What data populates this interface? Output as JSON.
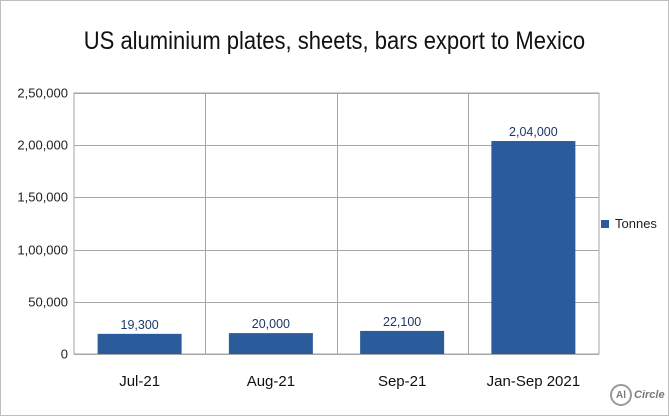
{
  "chart_data": {
    "type": "bar",
    "title": "US aluminium plates, sheets, bars export to Mexico",
    "categories": [
      "Jul-21",
      "Aug-21",
      "Sep-21",
      "Jan-Sep 2021"
    ],
    "series": [
      {
        "name": "Tonnes",
        "values": [
          19300,
          20000,
          22100,
          204000
        ],
        "data_labels": [
          "19,300",
          "20,000",
          "22,100",
          "2,04,000"
        ],
        "color": "#2a5b9b"
      }
    ],
    "ylim": [
      0,
      250000
    ],
    "y_ticks": [
      0,
      50000,
      100000,
      150000,
      200000,
      250000
    ],
    "y_tick_labels": [
      "0",
      "50,000",
      "1,00,000",
      "1,50,000",
      "2,00,000",
      "2,50,000"
    ],
    "xlabel": "",
    "ylabel": "",
    "grid": true,
    "legend_position": "right"
  },
  "logo": {
    "mark": "Al",
    "text": "Circle"
  }
}
